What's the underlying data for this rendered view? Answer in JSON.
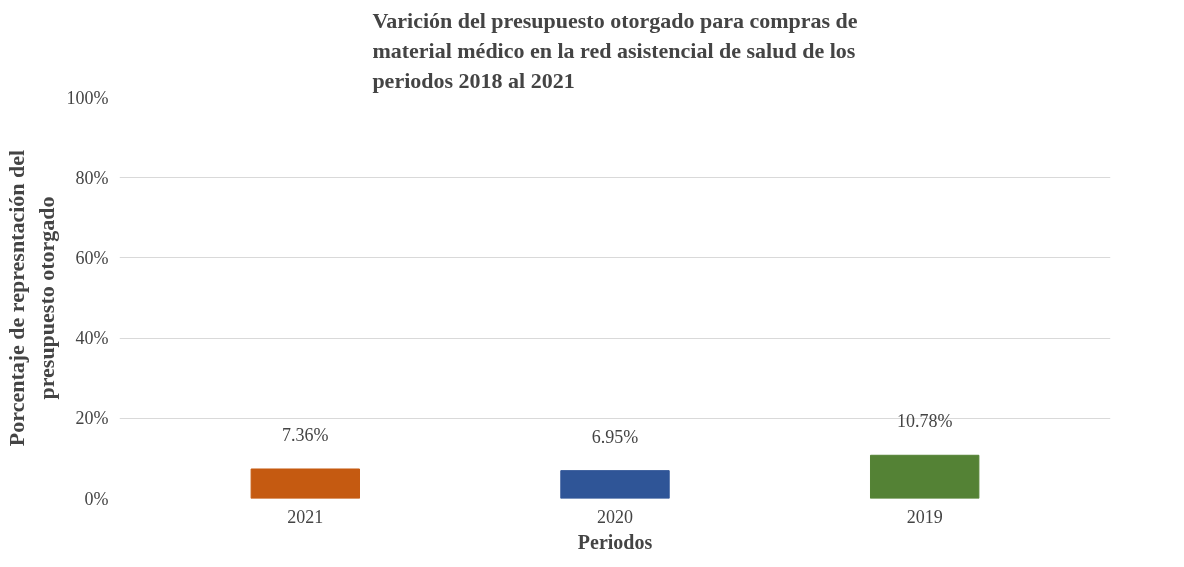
{
  "chart_data": {
    "type": "bar",
    "title": "Varición del presupuesto otorgado para compras de\nmaterial médico en la red asistencial de salud de los\nperiodos 2018 al 2021",
    "xlabel": "Periodos",
    "ylabel": "Porcentaje de represntación del\npresupuesto otorgado",
    "categories": [
      "2021",
      "2020",
      "2019"
    ],
    "values": [
      7.36,
      6.95,
      10.78
    ],
    "colors": [
      "#c55a11",
      "#2f5597",
      "#548235"
    ],
    "value_labels": [
      "7.36%",
      "6.95%",
      "10.78%"
    ],
    "ylim": [
      0,
      100
    ],
    "yticks": [
      {
        "value": 0,
        "label": "0%"
      },
      {
        "value": 20,
        "label": "20%"
      },
      {
        "value": 40,
        "label": "40%"
      },
      {
        "value": 60,
        "label": "60%"
      },
      {
        "value": 80,
        "label": "80%"
      },
      {
        "value": 100,
        "label": "100%"
      }
    ],
    "grid": "y"
  }
}
